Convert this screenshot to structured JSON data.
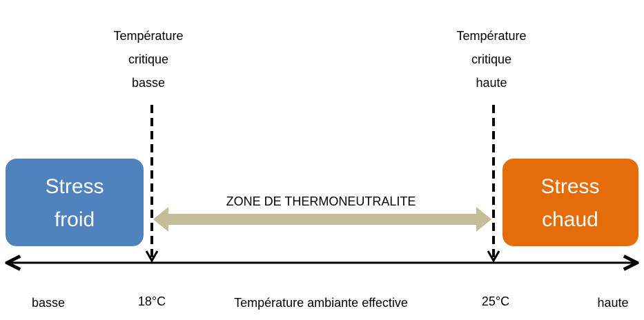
{
  "critical_low": {
    "lines": [
      "Température",
      "critique",
      "basse"
    ]
  },
  "critical_high": {
    "lines": [
      "Température",
      "critique",
      "haute"
    ]
  },
  "cold_box": {
    "lines": [
      "Stress",
      "froid"
    ]
  },
  "hot_box": {
    "lines": [
      "Stress",
      "chaud"
    ]
  },
  "zone_label": "ZONE DE THERMONEUTRALITE",
  "axis": {
    "low": "basse",
    "t_low": "18°C",
    "title": "Température ambiante effective",
    "t_high": "25°C",
    "high": "haute"
  }
}
